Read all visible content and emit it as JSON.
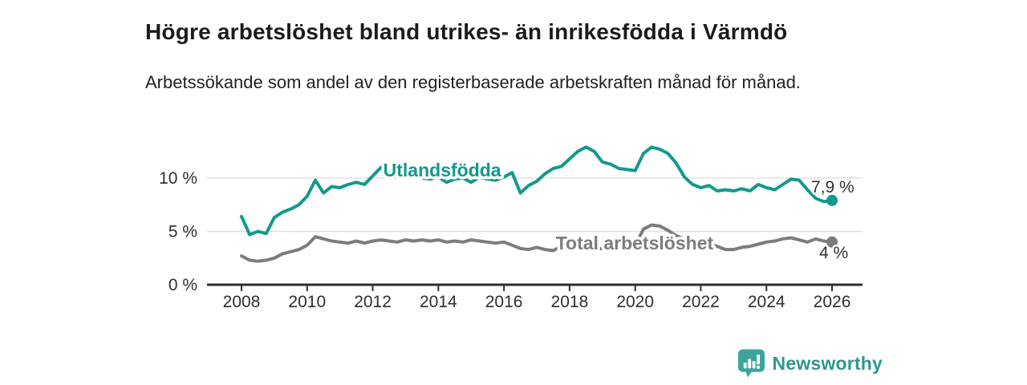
{
  "header": {
    "title": "Högre arbetslöshet bland utrikes- än inrikesfödda i Värmdö",
    "subtitle": "Arbetssökande som andel av den registerbaserade arbetskraften månad för månad."
  },
  "footer": {
    "brand": "Newsworthy",
    "logo_icon": "bar-chart-speech-bubble-icon",
    "brand_color": "#2f968f",
    "logo_fill": "#3da49c"
  },
  "colors": {
    "series_foreign_born": "#13998c",
    "series_total": "#7c7c80",
    "axis": "#2e2e2e",
    "grid": "#e2e2e2",
    "tick_text": "#2f2f2f",
    "annotation_text": "#333333",
    "background": "#ffffff"
  },
  "chart_data": {
    "type": "line",
    "unit": "%",
    "x_start_year": 2008,
    "points_per_year": 4,
    "x_end_year": 2026,
    "x_tick_years": [
      2008,
      2010,
      2012,
      2014,
      2016,
      2018,
      2020,
      2022,
      2024,
      2026
    ],
    "y_ticks": [
      {
        "value": 0,
        "label": "0 %"
      },
      {
        "value": 5,
        "label": "5 %"
      },
      {
        "value": 10,
        "label": "10 %"
      }
    ],
    "ylim": [
      0,
      13.5
    ],
    "grid": "horizontal",
    "legend": "inline-labels",
    "series": [
      {
        "name": "Utlandsfödda",
        "color": "#13998c",
        "end_label": "7,9 %",
        "end_value": 7.9,
        "label_anchor": {
          "year": 2012.32,
          "pct": 10.15
        },
        "end_label_offset": [
          -26,
          -10
        ],
        "values": [
          6.4,
          4.7,
          5.0,
          4.8,
          6.3,
          6.8,
          7.1,
          7.5,
          8.3,
          9.8,
          8.6,
          9.2,
          9.1,
          9.4,
          9.6,
          9.4,
          10.2,
          11.0,
          10.5,
          10.2,
          10.3,
          10.5,
          10.0,
          9.9,
          10.1,
          9.6,
          9.9,
          10.0,
          9.6,
          10.1,
          9.9,
          9.8,
          10.1,
          10.5,
          8.6,
          9.3,
          9.7,
          10.4,
          10.9,
          11.1,
          11.8,
          12.5,
          12.9,
          12.5,
          11.5,
          11.3,
          10.9,
          10.8,
          10.7,
          12.3,
          12.9,
          12.7,
          12.3,
          11.4,
          10.1,
          9.4,
          9.1,
          9.3,
          8.8,
          8.9,
          8.8,
          9.0,
          8.8,
          9.4,
          9.1,
          8.9,
          9.4,
          9.9,
          9.8,
          8.9,
          8.1,
          7.8,
          7.9
        ]
      },
      {
        "name": "Total arbetslöshet",
        "color": "#7c7c80",
        "end_label": "4 %",
        "end_value": 4.0,
        "label_anchor": {
          "year": 2017.58,
          "pct": 3.3
        },
        "end_label_offset": [
          -16,
          20
        ],
        "values": [
          2.7,
          2.3,
          2.2,
          2.3,
          2.5,
          2.9,
          3.1,
          3.3,
          3.7,
          4.5,
          4.3,
          4.1,
          4.0,
          3.9,
          4.1,
          3.9,
          4.1,
          4.2,
          4.1,
          4.0,
          4.2,
          4.1,
          4.2,
          4.1,
          4.2,
          4.0,
          4.1,
          4.0,
          4.2,
          4.1,
          4.0,
          3.9,
          4.0,
          3.7,
          3.4,
          3.3,
          3.5,
          3.3,
          3.2,
          3.6,
          3.5,
          3.4,
          3.3,
          3.3,
          3.4,
          3.3,
          3.3,
          3.4,
          3.7,
          5.2,
          5.6,
          5.5,
          5.1,
          4.6,
          4.3,
          4.1,
          3.9,
          3.8,
          3.6,
          3.3,
          3.3,
          3.5,
          3.6,
          3.8,
          4.0,
          4.1,
          4.3,
          4.4,
          4.2,
          4.0,
          4.3,
          4.1,
          4.0
        ]
      }
    ]
  }
}
